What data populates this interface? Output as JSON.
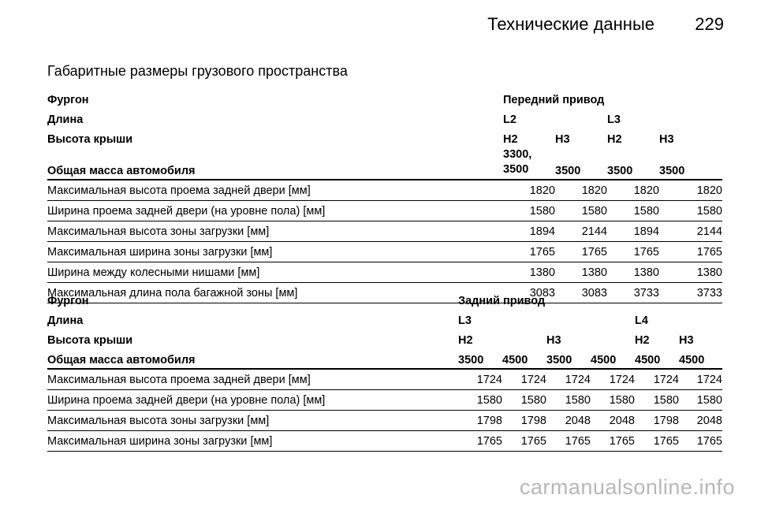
{
  "header": {
    "title": "Технические данные",
    "page": "229"
  },
  "section_title": "Габаритные размеры грузового пространства",
  "table1": {
    "van_label": "Фургон",
    "drive": "Передний привод",
    "length_label": "Длина",
    "lengths": [
      "L2",
      "",
      "L3",
      ""
    ],
    "roof_label": "Высота крыши",
    "roofs": [
      "H2",
      "H3",
      "H2",
      "H3"
    ],
    "mass_label": "Общая масса автомобиля",
    "mass_first_line": "3300,",
    "masses": [
      "3500",
      "3500",
      "3500",
      "3500"
    ],
    "rows": [
      {
        "label": "Максимальная высота проема задней двери [мм]",
        "values": [
          "1820",
          "1820",
          "1820",
          "1820"
        ]
      },
      {
        "label": "Ширина проема задней двери (на уровне пола) [мм]",
        "values": [
          "1580",
          "1580",
          "1580",
          "1580"
        ]
      },
      {
        "label": "Максимальная высота зоны загрузки [мм]",
        "values": [
          "1894",
          "2144",
          "1894",
          "2144"
        ]
      },
      {
        "label": "Максимальная ширина зоны загрузки [мм]",
        "values": [
          "1765",
          "1765",
          "1765",
          "1765"
        ]
      },
      {
        "label": "Ширина между колесными нишами [мм]",
        "values": [
          "1380",
          "1380",
          "1380",
          "1380"
        ]
      },
      {
        "label": "Максимальная длина пола багажной зоны [мм]",
        "values": [
          "3083",
          "3083",
          "3733",
          "3733"
        ]
      }
    ]
  },
  "table2": {
    "van_label": "Фургон",
    "drive": "Задний привод",
    "length_label": "Длина",
    "lengths": [
      "L3",
      "",
      "",
      "",
      "L4",
      ""
    ],
    "roof_label": "Высота крыши",
    "roofs": [
      "H2",
      "",
      "H3",
      "",
      "H2",
      "H3"
    ],
    "mass_label": "Общая масса автомобиля",
    "masses": [
      "3500",
      "4500",
      "3500",
      "4500",
      "4500",
      "4500"
    ],
    "rows": [
      {
        "label": "Максимальная высота проема задней двери [мм]",
        "values": [
          "1724",
          "1724",
          "1724",
          "1724",
          "1724",
          "1724"
        ]
      },
      {
        "label": "Ширина проема задней двери (на уровне пола) [мм]",
        "values": [
          "1580",
          "1580",
          "1580",
          "1580",
          "1580",
          "1580"
        ]
      },
      {
        "label": "Максимальная высота зоны загрузки [мм]",
        "values": [
          "1798",
          "1798",
          "2048",
          "2048",
          "1798",
          "2048"
        ]
      },
      {
        "label": "Максимальная ширина зоны загрузки [мм]",
        "values": [
          "1765",
          "1765",
          "1765",
          "1765",
          "1765",
          "1765"
        ]
      }
    ]
  },
  "watermark": "carmanualsonline.info"
}
